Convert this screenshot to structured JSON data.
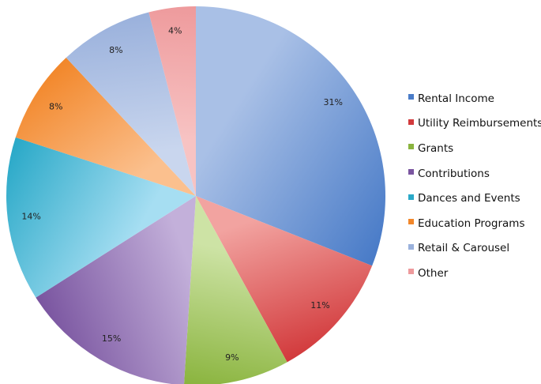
{
  "chart_data": {
    "type": "pie",
    "title": "",
    "legend_position": "right",
    "slices": [
      {
        "label": "Rental Income",
        "value": 31,
        "display": "31%",
        "color": "#4a7cc8",
        "color_light": "#a9c0e6"
      },
      {
        "label": "Utility Reimbursements",
        "value": 11,
        "display": "11%",
        "color": "#d23a3c",
        "color_light": "#f2a3a0"
      },
      {
        "label": "Grants",
        "value": 9,
        "display": "9%",
        "color": "#8ab43e",
        "color_light": "#cde3a5"
      },
      {
        "label": "Contributions",
        "value": 15,
        "display": "15%",
        "color": "#7a55a0",
        "color_light": "#c3b0da"
      },
      {
        "label": "Dances and Events",
        "value": 14,
        "display": "14%",
        "color": "#2aa9c8",
        "color_light": "#a6def2"
      },
      {
        "label": "Education Programs",
        "value": 8,
        "display": "8%",
        "color": "#f2872a",
        "color_light": "#fbc08e"
      },
      {
        "label": "Retail & Carousel",
        "value": 8,
        "display": "8%",
        "color": "#9ab1dc",
        "color_light": "#c9d6ee"
      },
      {
        "label": "Other",
        "value": 4,
        "display": "4%",
        "color": "#ee9a9c",
        "color_light": "#f7c3c3"
      }
    ]
  }
}
